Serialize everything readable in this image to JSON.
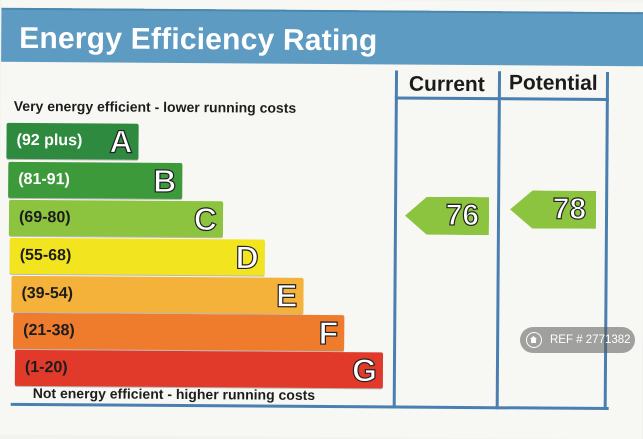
{
  "title": "Energy Efficiency Rating",
  "columns": {
    "current": "Current",
    "potential": "Potential"
  },
  "legend": {
    "top": "Very energy efficient - lower running costs",
    "bottom": "Not energy efficient - higher running costs"
  },
  "bands": [
    {
      "range": "(92 plus)",
      "letter": "A",
      "color": "#2d8a3e",
      "text_color": "#ffffff"
    },
    {
      "range": "(81-91)",
      "letter": "B",
      "color": "#3c9a3a",
      "text_color": "#ffffff"
    },
    {
      "range": "(69-80)",
      "letter": "C",
      "color": "#8cc43f",
      "text_color": "#1d1d1d"
    },
    {
      "range": "(55-68)",
      "letter": "D",
      "color": "#f2e41f",
      "text_color": "#1d1d1d"
    },
    {
      "range": "(39-54)",
      "letter": "E",
      "color": "#f4b23a",
      "text_color": "#1d1d1d"
    },
    {
      "range": "(21-38)",
      "letter": "F",
      "color": "#ef7b2d",
      "text_color": "#1d1d1d"
    },
    {
      "range": "(1-20)",
      "letter": "G",
      "color": "#e23a2a",
      "text_color": "#1d1d1d"
    }
  ],
  "ratings": {
    "current": {
      "value": "76",
      "band": "C",
      "color": "#8cc43f"
    },
    "potential": {
      "value": "78",
      "band": "C",
      "color": "#8cc43f"
    }
  },
  "watermark": {
    "text": "REF # 2771382",
    "icon": "home-icon"
  }
}
